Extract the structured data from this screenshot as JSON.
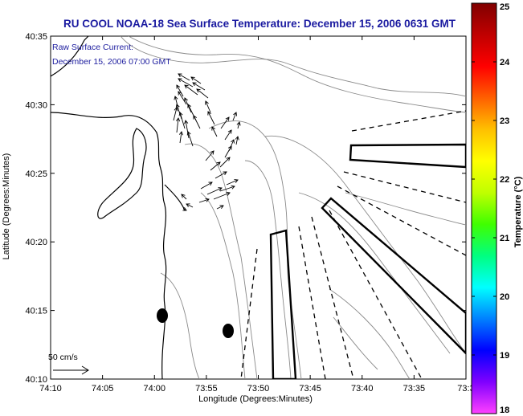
{
  "title": "RU COOL  NOAA-18  Sea Surface Temperature:  December 15, 2006 0631 GMT",
  "annotation": {
    "line1": "Raw Surface Current:",
    "line2": "December 15, 2006 07:00 GMT"
  },
  "scale_label": "50 cm/s",
  "axes": {
    "xlabel": "Longitude (Degrees:Minutes)",
    "ylabel": "Latitude (Degrees:Minutes)",
    "x_ticks": [
      "74:10",
      "74:05",
      "74:00",
      "73:55",
      "73:50",
      "73:45",
      "73:40",
      "73:35",
      "73:3"
    ],
    "y_ticks": [
      "40:35",
      "40:30",
      "40:25",
      "40:20",
      "40:15",
      "40:10"
    ]
  },
  "colorbar": {
    "label": "Temperature (°C)",
    "ticks": [
      "25",
      "24",
      "23",
      "22",
      "21",
      "20",
      "19",
      "18"
    ],
    "range": [
      18,
      25
    ],
    "colors": [
      "#ff40ff",
      "#8000ff",
      "#0000ff",
      "#0080ff",
      "#00ffff",
      "#00ff80",
      "#40ff00",
      "#c0ff00",
      "#ffff00",
      "#ffc000",
      "#ff6000",
      "#ff0000",
      "#c00000",
      "#800000"
    ]
  },
  "colors": {
    "title": "#1a1aa0",
    "annotation": "#2020a0"
  }
}
